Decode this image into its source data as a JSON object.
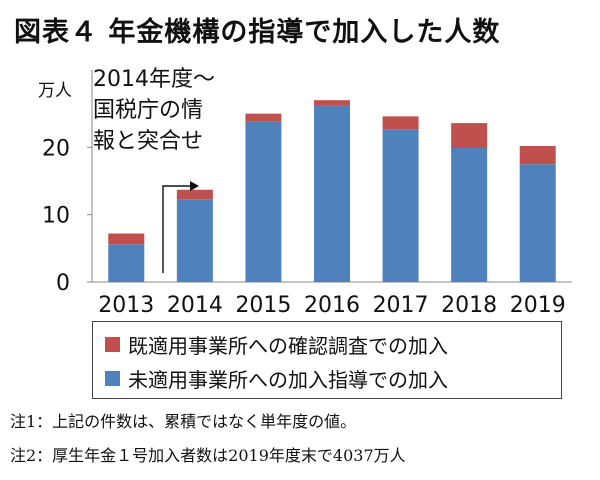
{
  "title": "図表４ 年金機構の指導で加入した人数",
  "chart_data": {
    "type": "bar",
    "stacked": true,
    "categories": [
      "2013",
      "2014",
      "2015",
      "2016",
      "2017",
      "2018",
      "2019"
    ],
    "series": [
      {
        "name": "未適用事業所への加入指導での加入",
        "color": "#4f81bd",
        "values": [
          5.6,
          12.3,
          23.8,
          26.2,
          22.7,
          19.9,
          17.5
        ]
      },
      {
        "name": "既適用事業所への確認調査での加入",
        "color": "#c0504d",
        "values": [
          1.6,
          1.4,
          1.2,
          0.8,
          1.9,
          3.7,
          2.7
        ]
      }
    ],
    "ylabel": "万人",
    "ylim": [
      0,
      30
    ],
    "yticks": [
      0,
      10,
      20
    ],
    "grid": false,
    "legend_position": "bottom",
    "annotation": "2014年度～国税庁の情報と突合せ",
    "annotation_lines": [
      "2014年度～",
      "国税庁の情",
      "報と突合せ"
    ]
  },
  "notes": [
    "注1：上記の件数は、累積ではなく単年度の値。",
    "注2：厚生年金１号加入者数は2019年度末で4037万人"
  ]
}
